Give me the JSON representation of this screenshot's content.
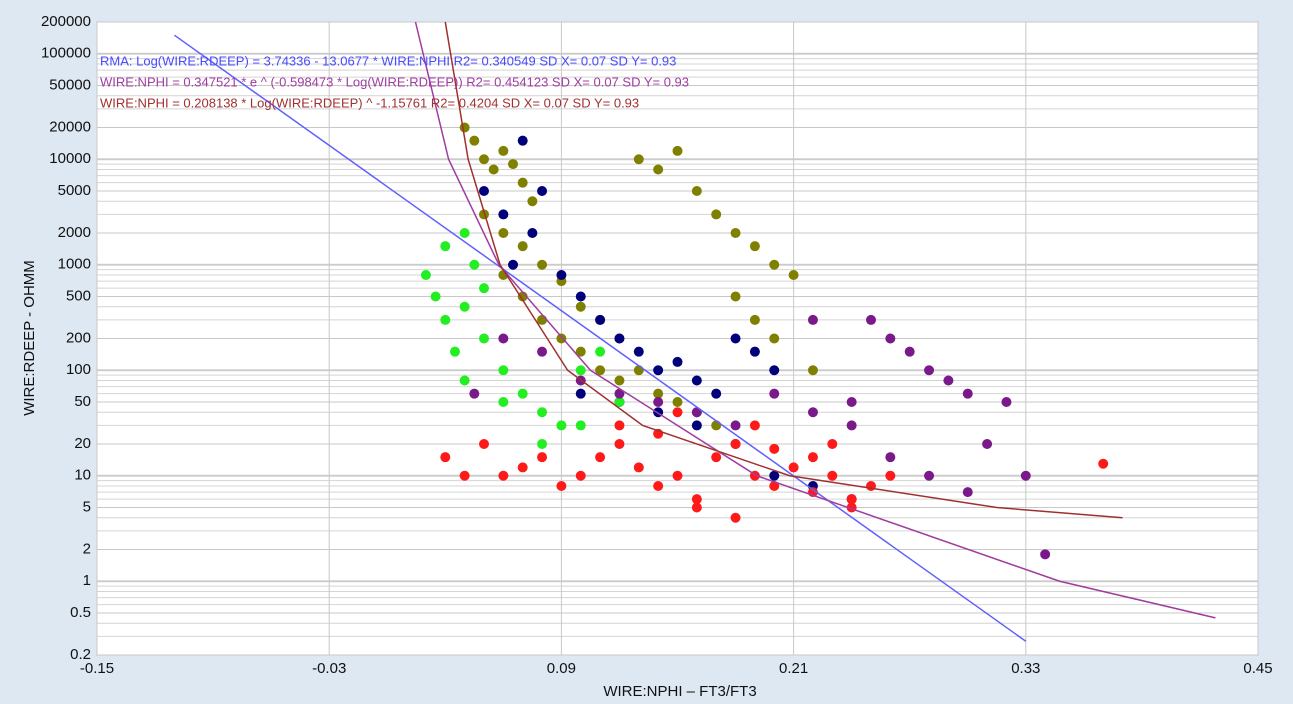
{
  "chart_data": {
    "type": "scatter",
    "x_label": "WIRE:NPHI – FT3/FT3",
    "y_label": "WIRE:RDEEP - OHMM",
    "annotations": [
      {
        "text": "RMA: Log(WIRE:RDEEP) = 3.74336  -  13.0677 * WIRE:NPHI   R2= 0.340549 SD X= 0.07 SD Y= 0.93",
        "color": "#4a4aff"
      },
      {
        "text": "WIRE:NPHI = 0.347521 * e ^ (-0.598473 * Log(WIRE:RDEEP))   R2= 0.454123 SD X= 0.07 SD Y= 0.93",
        "color": "#a03ca0"
      },
      {
        "text": "WIRE:NPHI = 0.208138 * Log(WIRE:RDEEP) ^ -1.15761    R2= 0.4204 SD X= 0.07 SD Y= 0.93",
        "color": "#a03030"
      }
    ],
    "xlim": [
      -0.15,
      0.45
    ],
    "xticks": [
      -0.15,
      -0.03,
      0.09,
      0.21,
      0.33,
      0.45
    ],
    "ylim": [
      0.2,
      200000
    ],
    "yticks": [
      0.2,
      0.5,
      1,
      2,
      5,
      10,
      20,
      50,
      100,
      200,
      500,
      1000,
      2000,
      5000,
      10000,
      20000,
      50000,
      100000,
      200000
    ],
    "y_log": true,
    "grid": true,
    "minor_grid": true,
    "series": [
      {
        "color": "#808000",
        "line": false,
        "x": [
          0.04,
          0.045,
          0.05,
          0.055,
          0.06,
          0.065,
          0.07,
          0.075,
          0.05,
          0.06,
          0.07,
          0.08,
          0.09,
          0.1,
          0.11,
          0.12,
          0.13,
          0.06,
          0.07,
          0.08,
          0.09,
          0.1,
          0.11,
          0.12,
          0.14,
          0.15,
          0.16,
          0.17,
          0.13,
          0.14,
          0.15,
          0.16,
          0.17,
          0.18,
          0.19,
          0.2,
          0.21,
          0.18,
          0.19,
          0.2,
          0.22
        ],
        "values": [
          20000,
          15000,
          10000,
          8000,
          12000,
          9000,
          6000,
          4000,
          3000,
          2000,
          1500,
          1000,
          700,
          400,
          300,
          200,
          100,
          800,
          500,
          300,
          200,
          150,
          100,
          80,
          60,
          50,
          40,
          30,
          10000,
          8000,
          12000,
          5000,
          3000,
          2000,
          1500,
          1000,
          800,
          500,
          300,
          200,
          100
        ]
      },
      {
        "color": "#00007a",
        "line": false,
        "x": [
          0.05,
          0.06,
          0.07,
          0.08,
          0.065,
          0.075,
          0.09,
          0.1,
          0.11,
          0.12,
          0.13,
          0.14,
          0.15,
          0.16,
          0.17,
          0.18,
          0.19,
          0.2,
          0.1,
          0.12,
          0.14,
          0.16,
          0.18,
          0.2,
          0.22,
          0.24
        ],
        "values": [
          5000,
          3000,
          15000,
          5000,
          1000,
          2000,
          800,
          500,
          300,
          200,
          150,
          100,
          120,
          80,
          60,
          200,
          150,
          100,
          60,
          50,
          40,
          30,
          20,
          10,
          8,
          6
        ]
      },
      {
        "color": "#22ee22",
        "line": false,
        "x": [
          0.02,
          0.025,
          0.03,
          0.035,
          0.04,
          0.045,
          0.05,
          0.03,
          0.04,
          0.05,
          0.06,
          0.07,
          0.08,
          0.09,
          0.1,
          0.11,
          0.12,
          0.04,
          0.06,
          0.08,
          0.1
        ],
        "values": [
          800,
          500,
          300,
          150,
          2000,
          1000,
          600,
          1500,
          400,
          200,
          100,
          60,
          40,
          30,
          100,
          150,
          50,
          80,
          50,
          20,
          30
        ]
      },
      {
        "color": "#7a1a8a",
        "line": false,
        "x": [
          0.06,
          0.08,
          0.1,
          0.12,
          0.14,
          0.16,
          0.18,
          0.2,
          0.22,
          0.24,
          0.26,
          0.28,
          0.3,
          0.32,
          0.25,
          0.27,
          0.29,
          0.31,
          0.33,
          0.3,
          0.28,
          0.26,
          0.24,
          0.34,
          0.22,
          0.045
        ],
        "values": [
          200,
          150,
          80,
          60,
          50,
          40,
          30,
          60,
          40,
          50,
          200,
          100,
          60,
          50,
          300,
          150,
          80,
          20,
          10,
          7,
          10,
          15,
          30,
          1.8,
          300,
          60
        ]
      },
      {
        "color": "#ff1a1a",
        "line": false,
        "x": [
          0.03,
          0.04,
          0.05,
          0.06,
          0.07,
          0.08,
          0.09,
          0.1,
          0.11,
          0.12,
          0.13,
          0.14,
          0.15,
          0.16,
          0.17,
          0.18,
          0.19,
          0.2,
          0.21,
          0.22,
          0.23,
          0.24,
          0.25,
          0.26,
          0.12,
          0.14,
          0.16,
          0.18,
          0.2,
          0.22,
          0.24,
          0.37,
          0.15,
          0.19,
          0.23
        ],
        "values": [
          15,
          10,
          20,
          10,
          12,
          15,
          8,
          10,
          15,
          20,
          12,
          8,
          10,
          6,
          15,
          20,
          10,
          8,
          12,
          15,
          10,
          6,
          8,
          10,
          30,
          25,
          5,
          4,
          18,
          7,
          5,
          13,
          40,
          30,
          20
        ]
      },
      {
        "color": "#6060ff",
        "line": true,
        "x": [
          -0.11,
          0.33
        ],
        "values": [
          150000,
          0.27
        ]
      },
      {
        "color": "#a03ca0",
        "line": true,
        "x": [
          0.0146,
          0.0317,
          0.0577,
          0.105,
          0.191,
          0.3475,
          0.428
        ],
        "values": [
          200000,
          10000,
          1000,
          100,
          10,
          1,
          0.45
        ]
      },
      {
        "color": "#a03030",
        "line": true,
        "x": [
          0.03,
          0.0418,
          0.0583,
          0.0932,
          0.132,
          0.208,
          0.315,
          0.38
        ],
        "values": [
          200000,
          10000,
          1000,
          100,
          30,
          10,
          5,
          4
        ]
      }
    ]
  }
}
